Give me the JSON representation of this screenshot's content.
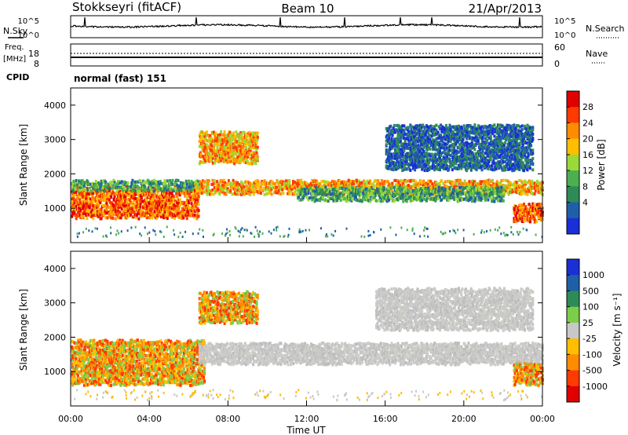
{
  "header": {
    "station": "Stokkseyri (fitACF)",
    "beam": "Beam 10",
    "date": "21/Apr/2013"
  },
  "left_labels": {
    "nsky": "N.Sky",
    "freq": "Freq.",
    "mhz": "[MHz]",
    "cpid": "CPID"
  },
  "right_labels": {
    "nsearch": "N.Search",
    "nave": "Nave"
  },
  "noise_panel": {
    "left_ticks": [
      "10^5",
      "10^0"
    ],
    "right_ticks": [
      "10^5",
      "10^0"
    ]
  },
  "freq_panel": {
    "left_ticks": [
      "18",
      "8"
    ],
    "right_ticks": [
      "60",
      "0"
    ]
  },
  "cpid_text": "normal (fast) 151",
  "power_colorbar": {
    "label": "Power [dB]",
    "ticks": [
      "28",
      "24",
      "20",
      "16",
      "12",
      "8",
      "4"
    ],
    "colors": [
      "#e00000",
      "#ff3a00",
      "#ff8c00",
      "#ffbe00",
      "#9bd93a",
      "#4caf50",
      "#2e8b57",
      "#1f5fa8",
      "#1a2fd6"
    ]
  },
  "velocity_colorbar": {
    "label": "Velocity [m s⁻¹]",
    "ticks": [
      "1000",
      "500",
      "100",
      "25",
      "-25",
      "-100",
      "-500",
      "-1000"
    ],
    "colors": [
      "#1a2fd6",
      "#1f5fa8",
      "#2e8b57",
      "#7ccd4a",
      "#c8c8c8",
      "#ffbe00",
      "#ff8c00",
      "#ff3a00",
      "#e00000"
    ]
  },
  "x_axis": {
    "label": "Time UT",
    "ticks": [
      "00:00",
      "04:00",
      "08:00",
      "12:00",
      "16:00",
      "20:00",
      "00:00"
    ]
  },
  "chart_data": [
    {
      "type": "heatmap",
      "title": "Power",
      "ylabel": "Slant Range [km]",
      "xlabel": "",
      "ylim": [
        0,
        4500
      ],
      "xlim_hours": [
        0,
        24
      ],
      "y_ticks": [
        1000,
        2000,
        3000,
        4000
      ],
      "bands": [
        {
          "t0": 0.0,
          "t1": 6.5,
          "r0": 800,
          "r1": 1700,
          "level": "red"
        },
        {
          "t0": 0.0,
          "t1": 6.5,
          "r0": 1600,
          "r1": 1900,
          "level": "green"
        },
        {
          "t0": 6.3,
          "t1": 24.0,
          "r0": 1500,
          "r1": 1900,
          "level": "orange"
        },
        {
          "t0": 11.5,
          "t1": 22.0,
          "r0": 1300,
          "r1": 1700,
          "level": "green"
        },
        {
          "t0": 6.5,
          "t1": 9.5,
          "r0": 2400,
          "r1": 3300,
          "level": "orange"
        },
        {
          "t0": 16.0,
          "t1": 23.5,
          "r0": 2200,
          "r1": 3500,
          "level": "blue"
        },
        {
          "t0": 22.5,
          "t1": 24.0,
          "r0": 700,
          "r1": 1200,
          "level": "red"
        }
      ]
    },
    {
      "type": "heatmap",
      "title": "Velocity",
      "ylabel": "Slant Range [km]",
      "xlabel": "Time UT",
      "ylim": [
        0,
        4500
      ],
      "xlim_hours": [
        0,
        24
      ],
      "y_ticks": [
        1000,
        2000,
        3000,
        4000
      ],
      "bands": [
        {
          "t0": 0.0,
          "t1": 6.8,
          "r0": 700,
          "r1": 2000,
          "level": "negative"
        },
        {
          "t0": 6.5,
          "t1": 24.0,
          "r0": 1300,
          "r1": 1900,
          "level": "ground"
        },
        {
          "t0": 6.5,
          "t1": 9.5,
          "r0": 2500,
          "r1": 3400,
          "level": "negative"
        },
        {
          "t0": 15.5,
          "t1": 23.5,
          "r0": 2300,
          "r1": 3500,
          "level": "ground"
        },
        {
          "t0": 22.5,
          "t1": 24.0,
          "r0": 700,
          "r1": 1300,
          "level": "negative"
        }
      ]
    }
  ]
}
